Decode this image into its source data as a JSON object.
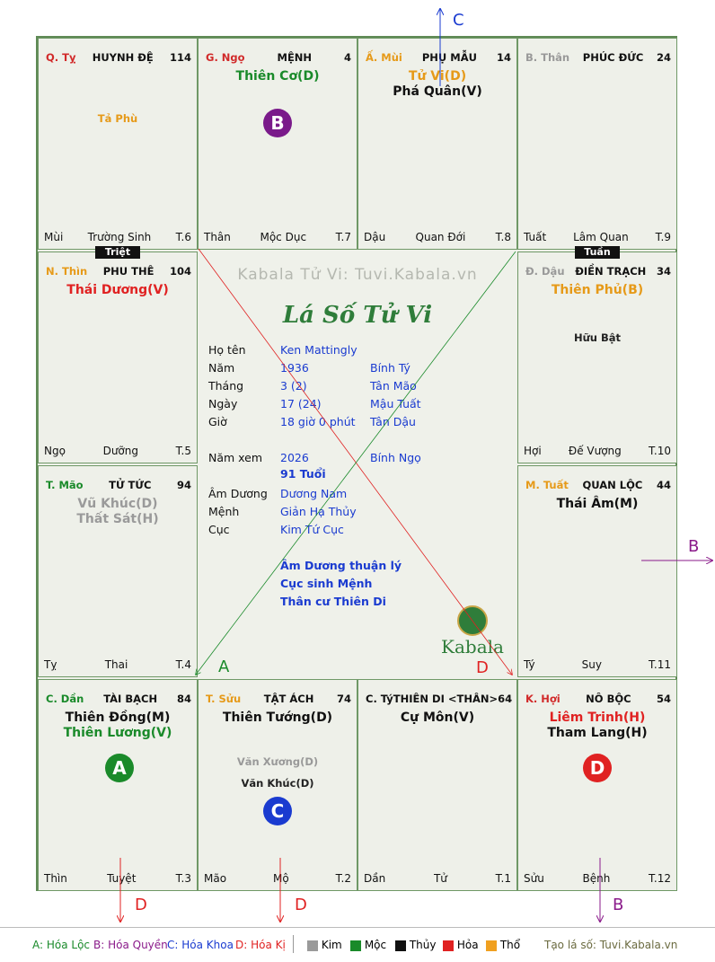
{
  "cells": [
    {
      "can": "Q. Tỵ",
      "can_color": "#d12a2a",
      "name": "HUYNH ĐỆ",
      "num": "114",
      "stars": [],
      "minor": [
        "Tả Phù"
      ],
      "minor_color": "#e69a19",
      "left": "Mùi",
      "mid": "Trường Sinh",
      "right": "T.6"
    },
    {
      "can": "G. Ngọ",
      "can_color": "#d12a2a",
      "name": "MỆNH",
      "num": "4",
      "stars": [
        {
          "t": "Thiên Cơ(D)",
          "c": "#1a8a2a"
        }
      ],
      "minor": [],
      "left": "Thân",
      "mid": "Mộc Dục",
      "right": "T.7"
    },
    {
      "can": "Ấ. Mùi",
      "can_color": "#e69a19",
      "name": "PHỤ MẪU",
      "num": "14",
      "stars": [
        {
          "t": "Tử Vi(D)",
          "c": "#e69a19"
        },
        {
          "t": "Phá Quân(V)",
          "c": "#111111"
        }
      ],
      "minor": [],
      "left": "Dậu",
      "mid": "Quan Đới",
      "right": "T.8"
    },
    {
      "can": "B. Thân",
      "can_color": "#999999",
      "name": "PHÚC ĐỨC",
      "num": "24",
      "stars": [],
      "minor": [],
      "left": "Tuất",
      "mid": "Lâm Quan",
      "right": "T.9"
    },
    {
      "can": "N. Thìn",
      "can_color": "#e69a19",
      "name": "PHU THÊ",
      "num": "104",
      "stars": [
        {
          "t": "Thái Dương(V)",
          "c": "#e02222"
        }
      ],
      "minor": [],
      "left": "Ngọ",
      "mid": "Dưỡng",
      "right": "T.5"
    },
    {
      "can": "Đ. Dậu",
      "can_color": "#999999",
      "name": "ĐIỀN TRẠCH",
      "num": "34",
      "stars": [
        {
          "t": "Thiên Phủ(B)",
          "c": "#e69a19"
        }
      ],
      "minor": [
        "Hữu Bật"
      ],
      "minor_color": "#222222",
      "left": "Hợi",
      "mid": "Đế Vượng",
      "right": "T.10"
    },
    {
      "can": "T. Mão",
      "can_color": "#1a8a2a",
      "name": "TỬ TỨC",
      "num": "94",
      "stars": [
        {
          "t": "Vũ Khúc(D)",
          "c": "#9a9a9a"
        },
        {
          "t": "Thất Sát(H)",
          "c": "#9a9a9a"
        }
      ],
      "minor": [],
      "left": "Tỵ",
      "mid": "Thai",
      "right": "T.4"
    },
    {
      "can": "M. Tuất",
      "can_color": "#e69a19",
      "name": "QUAN LỘC",
      "num": "44",
      "stars": [
        {
          "t": "Thái Âm(M)",
          "c": "#111111"
        }
      ],
      "minor": [],
      "left": "Tý",
      "mid": "Suy",
      "right": "T.11"
    },
    {
      "can": "C. Dần",
      "can_color": "#1a8a2a",
      "name": "TÀI BẠCH",
      "num": "84",
      "stars": [
        {
          "t": "Thiên Đồng(M)",
          "c": "#111111"
        },
        {
          "t": "Thiên Lương(V)",
          "c": "#1a8a2a"
        }
      ],
      "minor": [],
      "left": "Thìn",
      "mid": "Tuyệt",
      "right": "T.3"
    },
    {
      "can": "T. Sửu",
      "can_color": "#e69a19",
      "name": "TẬT ÁCH",
      "num": "74",
      "stars": [
        {
          "t": "Thiên Tướng(D)",
          "c": "#111111"
        }
      ],
      "minor": [
        "Văn Xương(D)",
        "Văn Khúc(D)"
      ],
      "minor_color": "#999999",
      "left": "Mão",
      "mid": "Mộ",
      "right": "T.2"
    },
    {
      "can": "C. Tý",
      "can_color": "#111111",
      "name": "THIÊN DI <THÂN>",
      "num": "64",
      "stars": [
        {
          "t": "Cự Môn(V)",
          "c": "#111111"
        }
      ],
      "minor": [],
      "left": "Dần",
      "mid": "Tử",
      "right": "T.1"
    },
    {
      "can": "K. Hợi",
      "can_color": "#d12a2a",
      "name": "NÔ BỘC",
      "num": "54",
      "stars": [
        {
          "t": "Liêm Trinh(H)",
          "c": "#e02222"
        },
        {
          "t": "Tham Lang(H)",
          "c": "#111111"
        }
      ],
      "minor": [],
      "left": "Sửu",
      "mid": "Bệnh",
      "right": "T.12"
    }
  ],
  "tags": {
    "triet": "Triệt",
    "tuan": "Tuần"
  },
  "badges": {
    "a": "A",
    "b": "B",
    "c": "C",
    "d": "D"
  },
  "center": {
    "watermark": "Kabala Tử Vi: Tuvi.Kabala.vn",
    "title": "Lá Số Tử Vi",
    "rows": [
      {
        "label": "Họ tên",
        "v1": "Ken Mattingly",
        "v2": ""
      },
      {
        "label": "Năm",
        "v1": "1936",
        "v2": "Bính Tý"
      },
      {
        "label": "Tháng",
        "v1": "3  (2)",
        "v2": "Tân Mão"
      },
      {
        "label": "Ngày",
        "v1": "17  (24)",
        "v2": "Mậu Tuất"
      },
      {
        "label": "Giờ",
        "v1": "18 giờ 0 phút",
        "v2": "Tân Dậu"
      },
      {
        "label": "Năm xem",
        "v1": "2026",
        "v2": "Bính Ngọ"
      },
      {
        "label": "",
        "v1": "91 Tuổi",
        "v2": ""
      },
      {
        "label": "Âm Dương",
        "v1": "Dương Nam",
        "v2": ""
      },
      {
        "label": "Mệnh",
        "v1": "Giản Hạ Thủy",
        "v2": ""
      },
      {
        "label": "Cục",
        "v1": "Kim Tứ Cục",
        "v2": ""
      }
    ],
    "notes": [
      "Âm Dương thuận lý",
      "Cục sinh Mệnh",
      "Thân cư Thiên Di"
    ],
    "logo": "Kabala"
  },
  "arrow_labels": {
    "c_top": "C",
    "b_right": "B",
    "a_line": "A",
    "d_line": "D",
    "d1": "D",
    "d2": "D",
    "b_bottom": "B"
  },
  "legend": {
    "a": "A: Hóa Lộc",
    "b": "B: Hóa Quyền",
    "c": "C: Hóa Khoa",
    "d": "D: Hóa Kị",
    "kim": "Kim",
    "moc": "Mộc",
    "thuy": "Thủy",
    "hoa": "Hỏa",
    "tho": "Thổ",
    "credit": "Tạo lá số: Tuvi.Kabala.vn"
  },
  "colors": {
    "kim": "#9a9a9a",
    "moc": "#1a8a2a",
    "thuy": "#111111",
    "hoa": "#e02222",
    "tho": "#f0a020"
  }
}
